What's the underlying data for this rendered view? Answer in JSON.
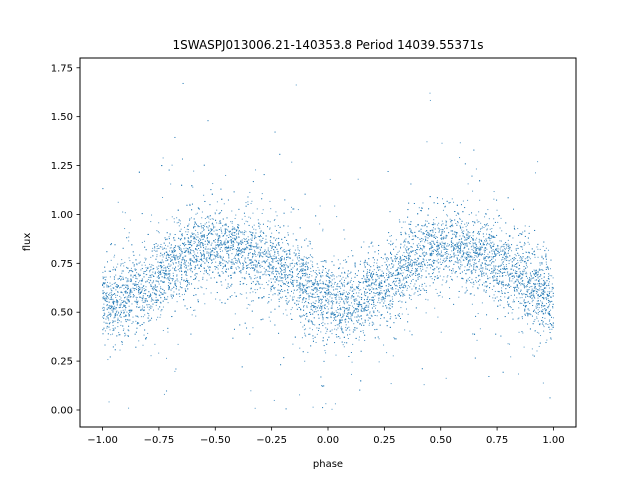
{
  "chart_data": {
    "type": "scatter",
    "title": "1SWASPJ013006.21-140353.8 Period 14039.55371s",
    "xlabel": "phase",
    "ylabel": "flux",
    "xlim": [
      -1.1,
      1.1
    ],
    "ylim": [
      -0.087,
      1.8
    ],
    "x_ticks": [
      -1.0,
      -0.75,
      -0.5,
      -0.25,
      0.0,
      0.25,
      0.5,
      0.75,
      1.0
    ],
    "x_tick_labels": [
      "−1.00",
      "−0.75",
      "−0.50",
      "−0.25",
      "0.00",
      "0.25",
      "0.50",
      "0.75",
      "1.00"
    ],
    "y_ticks": [
      0.0,
      0.25,
      0.5,
      0.75,
      1.0,
      1.25,
      1.5,
      1.75
    ],
    "y_tick_labels": [
      "0.00",
      "0.25",
      "0.50",
      "0.75",
      "1.00",
      "1.25",
      "1.50",
      "1.75"
    ],
    "grid": false,
    "legend": "none",
    "point_color": "#1f77b4",
    "series": [
      {
        "x": [
          -1.0,
          -0.95,
          -0.9,
          -0.85,
          -0.8,
          -0.75,
          -0.7,
          -0.65,
          -0.6,
          -0.55,
          -0.5,
          -0.45,
          -0.4,
          -0.35,
          -0.3,
          -0.25,
          -0.2,
          -0.15,
          -0.1,
          -0.05,
          0.0,
          0.05,
          0.1,
          0.15,
          0.2,
          0.25,
          0.3,
          0.35,
          0.4,
          0.45,
          0.5,
          0.55,
          0.6,
          0.65,
          0.7,
          0.75,
          0.8,
          0.85,
          0.9,
          0.95,
          1.0
        ],
        "y": [
          0.56,
          0.56,
          0.58,
          0.6,
          0.63,
          0.68,
          0.73,
          0.77,
          0.8,
          0.82,
          0.83,
          0.83,
          0.82,
          0.8,
          0.78,
          0.75,
          0.72,
          0.68,
          0.63,
          0.58,
          0.55,
          0.53,
          0.54,
          0.56,
          0.6,
          0.65,
          0.7,
          0.75,
          0.79,
          0.81,
          0.82,
          0.83,
          0.82,
          0.8,
          0.78,
          0.75,
          0.72,
          0.68,
          0.64,
          0.6,
          0.57
        ]
      }
    ]
  }
}
